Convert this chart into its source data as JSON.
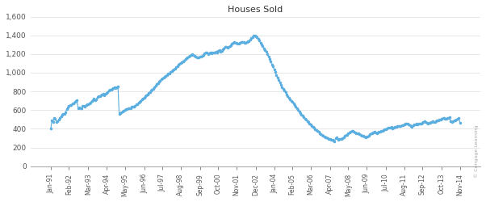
{
  "title": "Houses Sold",
  "line_color": "#5BAEE0",
  "bg_color": "#ffffff",
  "ylim": [
    0,
    1600
  ],
  "yticks": [
    0,
    200,
    400,
    600,
    800,
    1000,
    1200,
    1400,
    1600
  ],
  "watermark": "© Cengage Learning",
  "xtick_labels": [
    "Jan-91",
    "Feb-92",
    "Mar-93",
    "Apr-94",
    "May-95",
    "Jun-96",
    "Jul-97",
    "Aug-98",
    "Sep-99",
    "Oct-00",
    "Nov-01",
    "Dec-02",
    "Jan-04",
    "Feb-05",
    "Mar-06",
    "Apr-07",
    "May-08",
    "Jun-09",
    "Jul-10",
    "Aug-11",
    "Sep-12",
    "Oct-13",
    "Nov-14"
  ],
  "values": [
    401,
    491,
    477,
    516,
    509,
    471,
    480,
    496,
    514,
    535,
    548,
    560,
    558,
    575,
    611,
    629,
    642,
    652,
    658,
    668,
    671,
    688,
    695,
    702,
    618,
    630,
    618,
    618,
    643,
    647,
    640,
    655,
    660,
    661,
    673,
    684,
    697,
    710,
    720,
    708,
    718,
    737,
    746,
    749,
    756,
    770,
    773,
    762,
    773,
    783,
    792,
    812,
    818,
    821,
    828,
    838,
    841,
    835,
    845,
    851,
    558,
    568,
    578,
    585,
    593,
    600,
    607,
    612,
    619,
    618,
    620,
    633,
    636,
    634,
    643,
    659,
    666,
    676,
    686,
    700,
    715,
    726,
    733,
    748,
    762,
    770,
    780,
    793,
    810,
    820,
    830,
    847,
    864,
    879,
    891,
    903,
    916,
    927,
    936,
    948,
    958,
    968,
    976,
    987,
    993,
    1005,
    1015,
    1023,
    1033,
    1046,
    1059,
    1070,
    1085,
    1096,
    1106,
    1115,
    1123,
    1133,
    1143,
    1153,
    1163,
    1170,
    1178,
    1190,
    1200,
    1190,
    1182,
    1175,
    1168,
    1162,
    1160,
    1170,
    1175,
    1180,
    1192,
    1204,
    1212,
    1220,
    1198,
    1210,
    1220,
    1211,
    1219,
    1212,
    1220,
    1228,
    1220,
    1229,
    1240,
    1228,
    1237,
    1250,
    1262,
    1279,
    1280,
    1270,
    1276,
    1282,
    1294,
    1308,
    1320,
    1325,
    1318,
    1321,
    1315,
    1310,
    1320,
    1330,
    1325,
    1330,
    1320,
    1318,
    1328,
    1335,
    1340,
    1355,
    1370,
    1380,
    1395,
    1400,
    1390,
    1380,
    1362,
    1342,
    1320,
    1305,
    1285,
    1262,
    1245,
    1225,
    1200,
    1175,
    1148,
    1120,
    1090,
    1065,
    1035,
    1005,
    975,
    948,
    920,
    895,
    870,
    848,
    828,
    810,
    792,
    770,
    748,
    730,
    718,
    700,
    685,
    668,
    651,
    635,
    618,
    600,
    583,
    568,
    553,
    540,
    525,
    510,
    498,
    484,
    470,
    458,
    445,
    434,
    421,
    410,
    398,
    386,
    378,
    366,
    356,
    346,
    336,
    330,
    320,
    312,
    308,
    302,
    296,
    292,
    286,
    280,
    275,
    270,
    298,
    310,
    285,
    295,
    295,
    293,
    300,
    308,
    323,
    332,
    338,
    350,
    360,
    372,
    374,
    376,
    368,
    362,
    356,
    352,
    348,
    340,
    335,
    330,
    325,
    320,
    312,
    316,
    320,
    325,
    340,
    348,
    355,
    365,
    372,
    360,
    352,
    364,
    368,
    372,
    378,
    380,
    385,
    392,
    398,
    402,
    410,
    415,
    415,
    420,
    408,
    412,
    418,
    422,
    428,
    432,
    426,
    430,
    436,
    440,
    448,
    452,
    456,
    460,
    448,
    436,
    430,
    424,
    436,
    444,
    444,
    452,
    448,
    452,
    456,
    460,
    466,
    473,
    480,
    476,
    462,
    456,
    462,
    468,
    474,
    480,
    472,
    476,
    482,
    488,
    492,
    498,
    502,
    508,
    512,
    516,
    510,
    508,
    514,
    520,
    526,
    480,
    476,
    484,
    490,
    494,
    500,
    506,
    512,
    468
  ]
}
